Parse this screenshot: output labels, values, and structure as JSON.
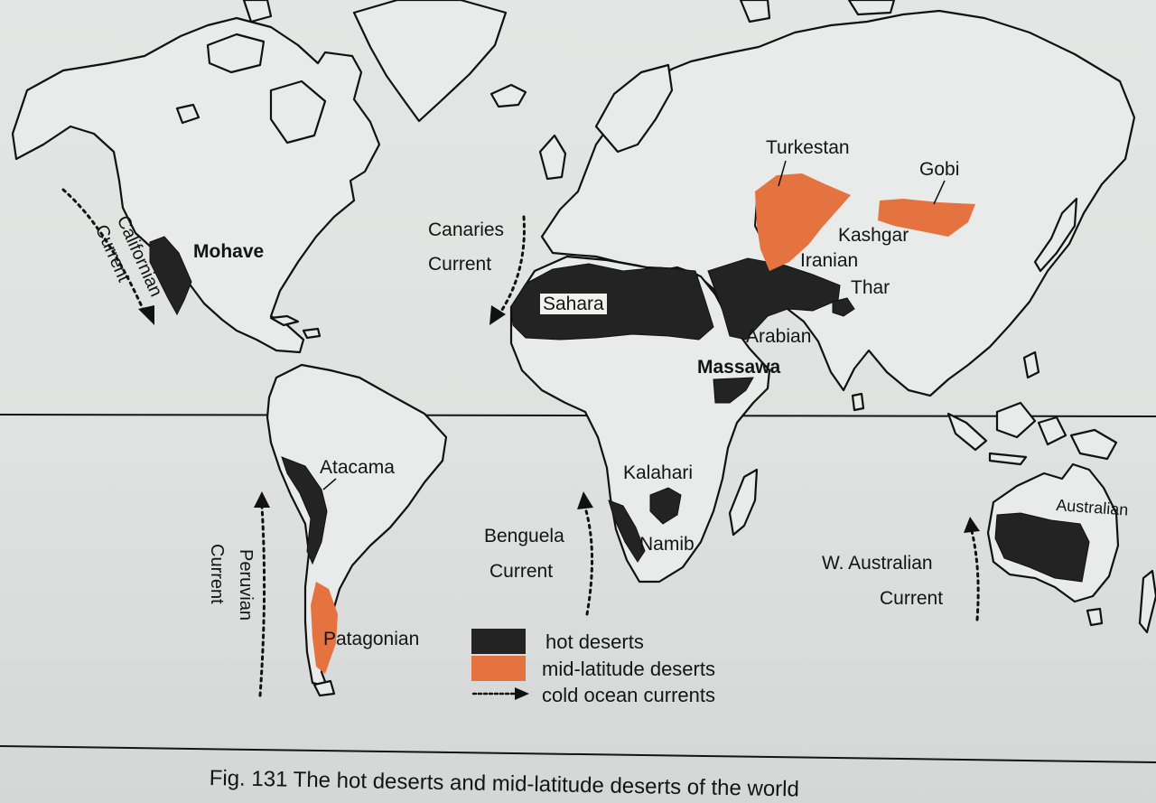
{
  "figure": {
    "caption": "Fig. 131 The hot deserts and mid-latitude deserts of the world"
  },
  "colors": {
    "hot_desert": "#232323",
    "mid_latitude_desert": "#e5733f",
    "land": "#e9ebea",
    "coastline": "#111111"
  },
  "hot_deserts": {
    "mohave": "Mohave",
    "sahara": "Sahara",
    "arabian": "Arabian",
    "massawa": "Massawa",
    "thar": "Thar",
    "atacama": "Atacama",
    "kalahari": "Kalahari",
    "namib": "Namib",
    "australian": "Australian"
  },
  "mid_latitude_deserts": {
    "turkestan": "Turkestan",
    "gobi": "Gobi",
    "kashgar": "Kashgar",
    "iranian": "Iranian",
    "patagonian": "Patagonian"
  },
  "currents": {
    "californian": [
      "Californian",
      "Current"
    ],
    "canaries": [
      "Canaries",
      "Current"
    ],
    "peruvian": [
      "Peruvian",
      "Current"
    ],
    "benguela": [
      "Benguela",
      "Current"
    ],
    "west_australian": [
      "W. Australian",
      "Current"
    ]
  },
  "legend": {
    "hot": "hot deserts",
    "mid": "mid-latitude deserts",
    "currents": "cold ocean currents"
  }
}
